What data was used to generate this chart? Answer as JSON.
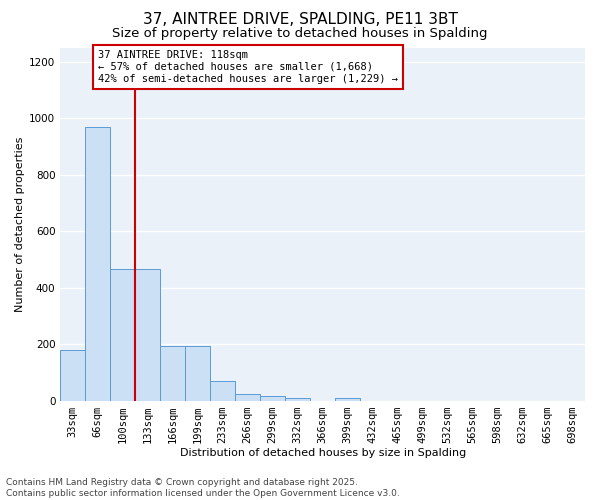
{
  "title1": "37, AINTREE DRIVE, SPALDING, PE11 3BT",
  "title2": "Size of property relative to detached houses in Spalding",
  "xlabel": "Distribution of detached houses by size in Spalding",
  "ylabel": "Number of detached properties",
  "categories": [
    "33sqm",
    "66sqm",
    "100sqm",
    "133sqm",
    "166sqm",
    "199sqm",
    "233sqm",
    "266sqm",
    "299sqm",
    "332sqm",
    "366sqm",
    "399sqm",
    "432sqm",
    "465sqm",
    "499sqm",
    "532sqm",
    "565sqm",
    "598sqm",
    "632sqm",
    "665sqm",
    "698sqm"
  ],
  "values": [
    180,
    970,
    465,
    465,
    195,
    195,
    70,
    25,
    18,
    10,
    0,
    10,
    0,
    0,
    0,
    0,
    0,
    0,
    0,
    0,
    0
  ],
  "bar_color": "#cce0f5",
  "bar_edgecolor": "#5b9bd5",
  "red_line_index": 2.5,
  "red_line_color": "#cc0000",
  "annotation_text": "37 AINTREE DRIVE: 118sqm\n← 57% of detached houses are smaller (1,668)\n42% of semi-detached houses are larger (1,229) →",
  "annotation_box_color": "#ffffff",
  "annotation_box_edgecolor": "#cc0000",
  "ylim": [
    0,
    1250
  ],
  "yticks": [
    0,
    200,
    400,
    600,
    800,
    1000,
    1200
  ],
  "background_color": "#eaf1f8",
  "grid_color": "#ffffff",
  "footer_text": "Contains HM Land Registry data © Crown copyright and database right 2025.\nContains public sector information licensed under the Open Government Licence v3.0.",
  "title_fontsize": 11,
  "subtitle_fontsize": 9.5,
  "annotation_fontsize": 7.5,
  "footer_fontsize": 6.5,
  "axis_fontsize": 7.5,
  "ylabel_fontsize": 8,
  "xlabel_fontsize": 8
}
